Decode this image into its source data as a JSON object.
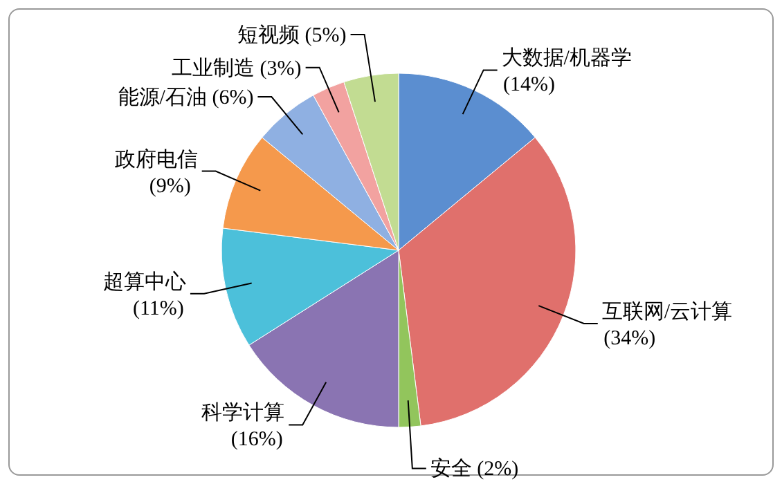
{
  "chart_data": {
    "type": "pie",
    "categories": [
      "大数据/机器学",
      "互联网/云计算",
      "安全",
      "科学计算",
      "超算中心",
      "政府电信",
      "能源/石油",
      "工业制造",
      "短视频"
    ],
    "values": [
      14,
      34,
      2,
      16,
      11,
      9,
      6,
      3,
      5
    ],
    "colors": [
      "#5b8ed0",
      "#e0706c",
      "#92c55c",
      "#8a74b2",
      "#4cc0da",
      "#f5994c",
      "#8fb0e2",
      "#f2a2a0",
      "#c2dc92"
    ],
    "value_labels": [
      "(14%)",
      "(34%)",
      "(2%)",
      "(16%)",
      "(11%)",
      "(9%)",
      "(6%)",
      "(3%)",
      "(5%)"
    ]
  }
}
